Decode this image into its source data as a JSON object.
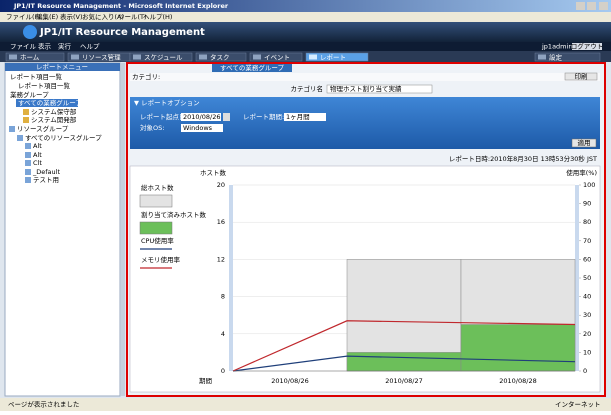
{
  "window": {
    "title": "JP1/IT Resource Management - Microsoft Internet Explorer",
    "menu": [
      "ファイル(F)",
      "編集(E)",
      "表示(V)",
      "お気に入り(A)",
      "ツール(T)",
      "ヘルプ(H)"
    ]
  },
  "app": {
    "title": "JP1/IT Resource Management",
    "menu": [
      "ファイル",
      "表示",
      "実行",
      "ヘルプ"
    ],
    "user": "jp1admin",
    "logout": "ログアウト",
    "tabs": [
      "ホーム",
      "リソース管理",
      "スケジュール",
      "タスク",
      "イベント",
      "レポート",
      "設定"
    ]
  },
  "sidebar": {
    "header": "レポートメニュー",
    "tree": [
      "レポート項目一覧",
      "レポート項目一覧",
      "業務グループ",
      "すべての業務グループ",
      "システム保守部",
      "システム開発部",
      "リソースグループ",
      "すべてのリソースグループ",
      "Alt",
      "Alt",
      "Clt",
      "_Default",
      "テスト用"
    ]
  },
  "main": {
    "tab": "すべての業務グループ",
    "category": "カテゴリ:",
    "print": "印刷",
    "category_name": "カテゴリ名",
    "category_value": "物理ホスト割り当て実績",
    "options": {
      "header": "▼ レポートオプション",
      "start_label": "レポート起点日:",
      "start_value": "2010/08/26",
      "period_label": "レポート期間:",
      "period_value": "1ヶ月間",
      "os_label": "対象OS:",
      "os_value": "Windows",
      "apply": "適用"
    },
    "report_time": "レポート日時:2010年8月30日 13時53分30秒 JST"
  },
  "chart": {
    "type": "combo",
    "ylabel": "ホスト数",
    "y2label": "使用率(%)",
    "xlabel": "期間",
    "categories": [
      "2010/08/26",
      "2010/08/27",
      "2010/08/28"
    ],
    "ylim": [
      0,
      20
    ],
    "yticks": [
      0,
      4,
      8,
      12,
      16,
      20
    ],
    "y2lim": [
      0,
      100
    ],
    "y2ticks": [
      0,
      10,
      20,
      30,
      40,
      50,
      60,
      70,
      80,
      90,
      100
    ],
    "grid": true,
    "series": [
      {
        "name": "総ホスト数",
        "type": "area",
        "color": "#e3e3e3",
        "values": [
          0,
          12,
          12
        ]
      },
      {
        "name": "割り当て済みホスト数",
        "type": "area",
        "color": "#6cbf5a",
        "values": [
          0,
          2,
          5
        ]
      },
      {
        "name": "CPU使用率",
        "type": "line",
        "axis": "y2",
        "color": "#1f3f7a",
        "values": [
          0,
          8,
          5
        ]
      },
      {
        "name": "メモリ使用率",
        "type": "line",
        "axis": "y2",
        "color": "#c0282d",
        "values": [
          0,
          27,
          25
        ]
      }
    ]
  },
  "status": {
    "left": "ページが表示されました",
    "right": "インターネット"
  }
}
